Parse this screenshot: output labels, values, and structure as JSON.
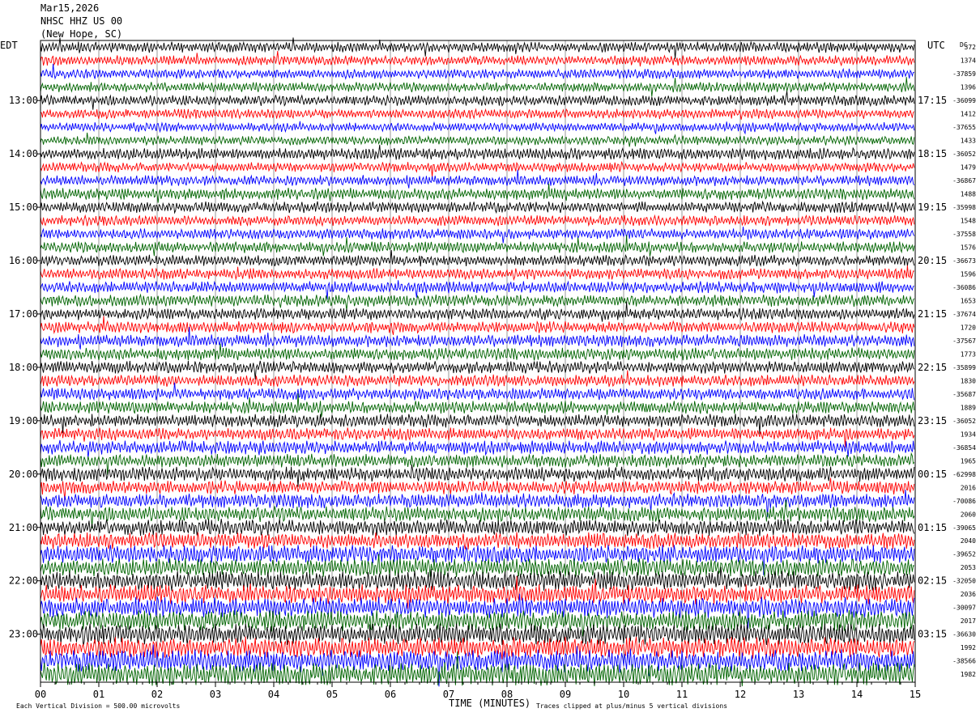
{
  "header": {
    "date": "Mar15,2026",
    "station": "NHSC HHZ US 00",
    "location": "(New Hope, SC)"
  },
  "labels": {
    "left_tz": "EDT",
    "right_tz": "UTC",
    "dc": "DC"
  },
  "footer": {
    "scale": "Each Vertical Division =  500.00 microvolts",
    "clip": "Traces clipped at plus/minus 5 vertical divisions"
  },
  "colors": {
    "traces": [
      "#000000",
      "#ff0000",
      "#0000ff",
      "#006400"
    ],
    "grid": "#808080"
  },
  "chart_data": {
    "type": "line",
    "xlabel": "TIME (MINUTES)",
    "xlim": [
      0,
      15
    ],
    "x_ticks": [
      "00",
      "01",
      "02",
      "03",
      "04",
      "05",
      "06",
      "07",
      "08",
      "09",
      "10",
      "11",
      "12",
      "13",
      "14",
      "15"
    ],
    "left_hour_labels": [
      "13:00",
      "14:00",
      "15:00",
      "16:00",
      "17:00",
      "18:00",
      "19:00",
      "20:00",
      "21:00",
      "22:00",
      "23:00"
    ],
    "right_hour_labels": [
      "17:15",
      "18:15",
      "19:15",
      "20:15",
      "21:15",
      "22:15",
      "23:15",
      "00:15",
      "01:15",
      "02:15",
      "03:15"
    ],
    "trace_count": 48,
    "first_labeled_hour_trace": 4,
    "traces_per_hour": 4,
    "dc_offsets": [
      "372",
      "1374",
      "-37859",
      "1396",
      "-36099",
      "1412",
      "-37655",
      "1433",
      "-36052",
      "1479",
      "-36867",
      "1488",
      "-35998",
      "1548",
      "-37558",
      "1576",
      "-36673",
      "1596",
      "-36086",
      "1653",
      "-37674",
      "1720",
      "-37567",
      "1773",
      "-35899",
      "1830",
      "-35687",
      "1889",
      "-36052",
      "1934",
      "-36854",
      "1965",
      "-62998",
      "2016",
      "-70086",
      "2060",
      "-39065",
      "2040",
      "-39652",
      "2053",
      "-32050",
      "2036",
      "-30097",
      "2017",
      "-36630",
      "1992",
      "-38566",
      "1982"
    ],
    "amplitude_by_trace": [
      0.32,
      0.3,
      0.3,
      0.3,
      0.32,
      0.3,
      0.28,
      0.28,
      0.36,
      0.3,
      0.32,
      0.36,
      0.34,
      0.32,
      0.32,
      0.34,
      0.34,
      0.34,
      0.36,
      0.36,
      0.36,
      0.36,
      0.38,
      0.38,
      0.38,
      0.36,
      0.36,
      0.38,
      0.4,
      0.38,
      0.42,
      0.4,
      0.44,
      0.42,
      0.44,
      0.46,
      0.5,
      0.5,
      0.56,
      0.56,
      0.58,
      0.58,
      0.62,
      0.62,
      0.64,
      0.64,
      0.68,
      0.7
    ],
    "clip_divisions": 5
  }
}
